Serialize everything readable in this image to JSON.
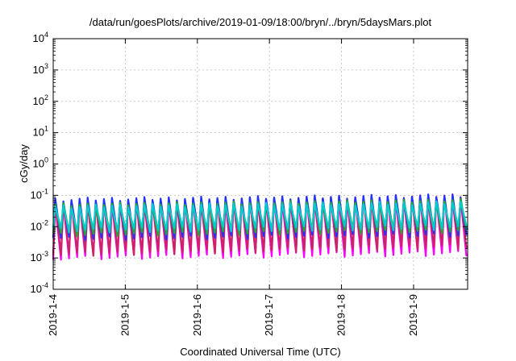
{
  "chart_data": {
    "type": "line",
    "title": "/data/run/goesPlots/archive/2019-01-09/18:00/bryn/../bryn/5daysMars.plot",
    "xlabel": "Coordinated Universal Time (UTC)",
    "ylabel": "cGy/day",
    "yscale": "log",
    "ylim": [
      0.0001,
      10000
    ],
    "xlim": [
      "2019-01-04T00:00",
      "2019-01-09T18:00"
    ],
    "grid": true,
    "legend": "none",
    "y_ticks": [
      {
        "base": "10",
        "exp": "-4"
      },
      {
        "base": "10",
        "exp": "-3"
      },
      {
        "base": "10",
        "exp": "-2"
      },
      {
        "base": "10",
        "exp": "-1"
      },
      {
        "base": "10",
        "exp": "0"
      },
      {
        "base": "10",
        "exp": "1"
      },
      {
        "base": "10",
        "exp": "2"
      },
      {
        "base": "10",
        "exp": "3"
      },
      {
        "base": "10",
        "exp": "4"
      }
    ],
    "x_ticks": [
      {
        "label": "2019-1-4",
        "date": "2019-01-04"
      },
      {
        "label": "2019-1-5",
        "date": "2019-01-05"
      },
      {
        "label": "2019-1-6",
        "date": "2019-01-06"
      },
      {
        "label": "2019-1-7",
        "date": "2019-01-07"
      },
      {
        "label": "2019-1-8",
        "date": "2019-01-08"
      },
      {
        "label": "2019-1-9",
        "date": "2019-01-09"
      }
    ],
    "orbit_period_hours": 2.7,
    "series": [
      {
        "color": "#ff00ff",
        "peak_start": 0.06,
        "peak_end": 0.09,
        "trough_start": 0.0011,
        "trough_end": 0.0015
      },
      {
        "color": "#cc2266",
        "peak_start": 0.065,
        "peak_end": 0.1,
        "trough_start": 0.0014,
        "trough_end": 0.0025
      },
      {
        "color": "#2233ff",
        "peak_start": 0.075,
        "peak_end": 0.1,
        "trough_start": 0.0045,
        "trough_end": 0.006
      },
      {
        "color": "#22aa33",
        "peak_start": 0.05,
        "peak_end": 0.07,
        "trough_start": 0.006,
        "trough_end": 0.008
      },
      {
        "color": "#00cccc",
        "peak_start": 0.045,
        "peak_end": 0.06,
        "trough_start": 0.008,
        "trough_end": 0.01
      }
    ]
  }
}
